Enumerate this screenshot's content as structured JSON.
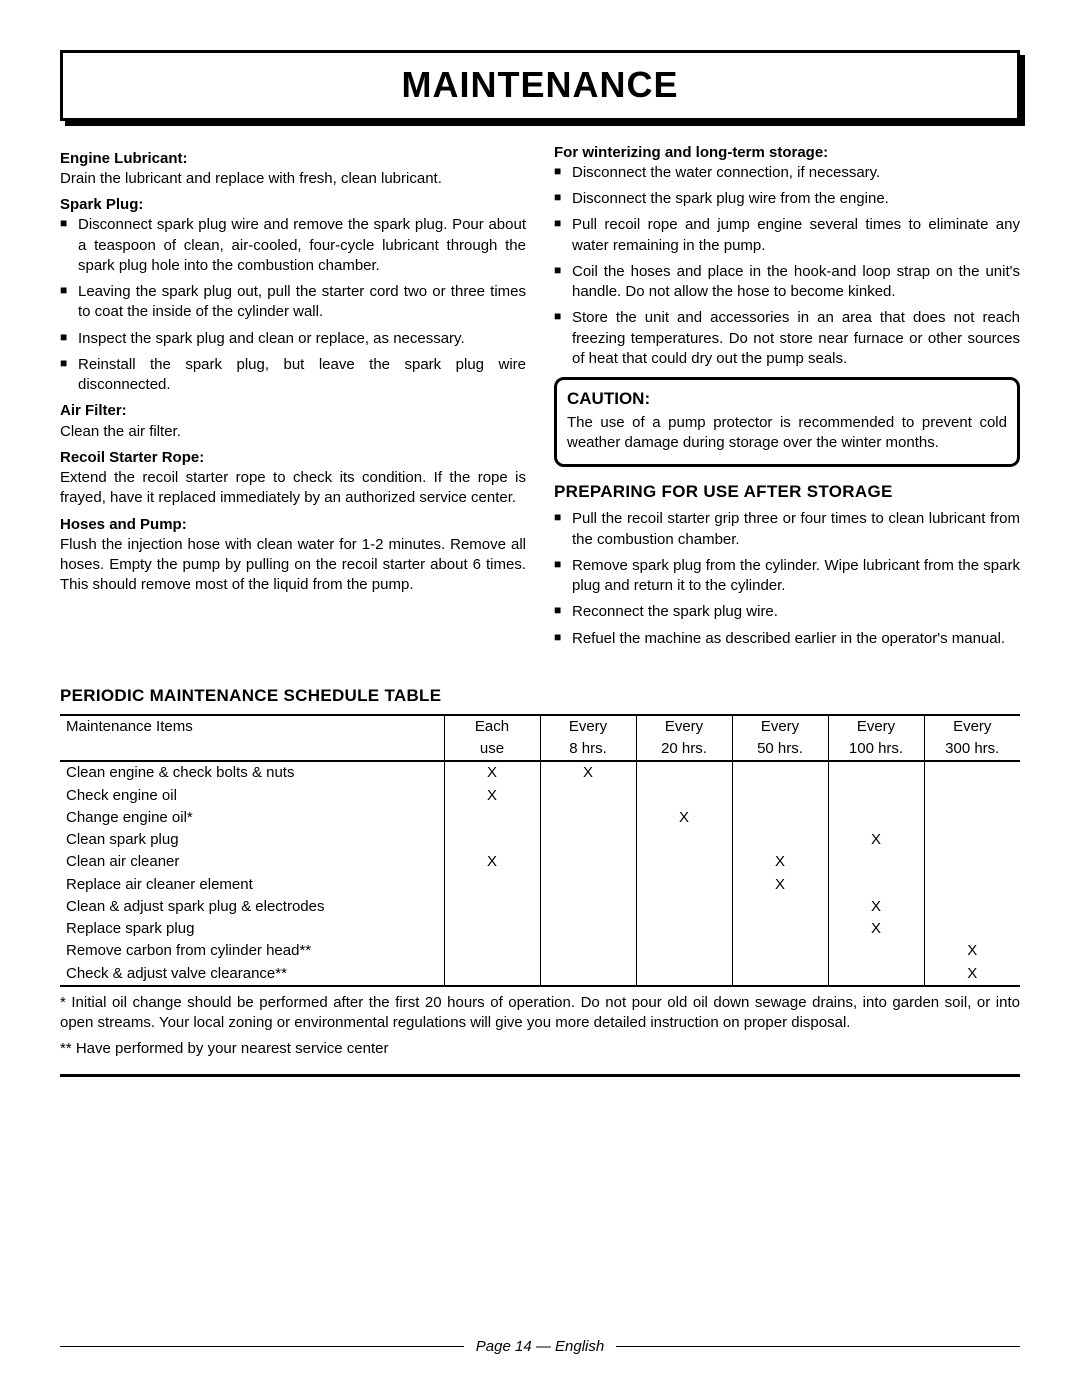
{
  "title": "MAINTENANCE",
  "left": {
    "engine_lub_h": "Engine Lubricant:",
    "engine_lub_p": "Drain the lubricant and replace with fresh, clean lubricant.",
    "spark_h": "Spark Plug:",
    "spark_items": [
      "Disconnect spark plug wire and remove the spark plug. Pour about a teaspoon of clean, air-cooled, four-cycle lubricant through the spark plug hole into the combustion chamber.",
      "Leaving the spark plug out, pull the starter cord two or three times to coat the inside of the cylinder wall.",
      "Inspect the spark plug and clean or replace, as necessary.",
      "Reinstall the spark plug, but leave the spark plug wire disconnected."
    ],
    "air_h": "Air Filter:",
    "air_p": "Clean the air filter.",
    "recoil_h": "Recoil Starter Rope:",
    "recoil_p": "Extend the recoil starter rope to check its condition. If the rope is frayed, have it replaced immediately by an authorized service center.",
    "hoses_h": "Hoses and Pump:",
    "hoses_p": "Flush the injection hose with clean water for 1-2 minutes. Remove all hoses. Empty the pump by pulling on the recoil starter about 6 times. This should remove most of the liquid from the pump."
  },
  "right": {
    "winter_h": "For winterizing and long-term storage:",
    "winter_items": [
      "Disconnect the water connection, if necessary.",
      "Disconnect the spark plug wire from the engine.",
      "Pull recoil rope and jump engine several times to eliminate any water remaining in the pump.",
      "Coil the hoses and place in the hook-and loop strap on the unit's handle. Do not allow the hose to become kinked.",
      "Store the unit and accessories in an area that does not reach freezing temperatures. Do not store near furnace or other sources of heat that could dry out the pump seals."
    ],
    "caution_h": "CAUTION:",
    "caution_p": "The use of a pump protector is recommended to prevent cold weather damage during storage over the winter months.",
    "prep_h": "PREPARING FOR USE AFTER STORAGE",
    "prep_items": [
      "Pull the recoil starter grip three or four times to clean lubricant from the combustion chamber.",
      "Remove spark plug from the cylinder. Wipe lubricant from the spark plug and return it to the cylinder.",
      "Reconnect the spark plug wire.",
      "Refuel the machine as described earlier in the operator's manual."
    ]
  },
  "table": {
    "heading": "PERIODIC MAINTENANCE SCHEDULE TABLE",
    "columns": [
      "Maintenance Items",
      "Each use",
      "Every 8 hrs.",
      "Every 20 hrs.",
      "Every 50 hrs.",
      "Every 100 hrs.",
      "Every 300 hrs."
    ],
    "col1_top": [
      "Each",
      "Every",
      "Every",
      "Every",
      "Every",
      "Every"
    ],
    "col1_bot": [
      "use",
      "8 hrs.",
      "20 hrs.",
      "50 hrs.",
      "100 hrs.",
      "300 hrs."
    ],
    "rows": [
      {
        "label": "Clean engine & check bolts & nuts",
        "marks": [
          "X",
          "X",
          "",
          "",
          "",
          ""
        ]
      },
      {
        "label": "Check engine oil",
        "marks": [
          "X",
          "",
          "",
          "",
          "",
          ""
        ]
      },
      {
        "label": "Change engine oil*",
        "marks": [
          "",
          "",
          "X",
          "",
          "",
          ""
        ]
      },
      {
        "label": "Clean spark plug",
        "marks": [
          "",
          "",
          "",
          "",
          "X",
          ""
        ]
      },
      {
        "label": "Clean air cleaner",
        "marks": [
          "X",
          "",
          "",
          "X",
          "",
          ""
        ]
      },
      {
        "label": "Replace air cleaner element",
        "marks": [
          "",
          "",
          "",
          "X",
          "",
          ""
        ]
      },
      {
        "label": "Clean & adjust spark plug & electrodes",
        "marks": [
          "",
          "",
          "",
          "",
          "X",
          ""
        ]
      },
      {
        "label": "Replace spark plug",
        "marks": [
          "",
          "",
          "",
          "",
          "X",
          ""
        ]
      },
      {
        "label": "Remove carbon from cylinder head**",
        "marks": [
          "",
          "",
          "",
          "",
          "",
          "X"
        ]
      },
      {
        "label": "Check & adjust valve clearance**",
        "marks": [
          "",
          "",
          "",
          "",
          "",
          "X"
        ]
      }
    ],
    "note1": "* Initial oil change should be performed after the first 20 hours of operation. Do not pour old oil down sewage drains, into garden soil, or into open streams. Your local zoning or environmental regulations will give you more detailed instruction on proper disposal.",
    "note2": "** Have performed by your nearest service center"
  },
  "footer": "Page 14  —  English"
}
